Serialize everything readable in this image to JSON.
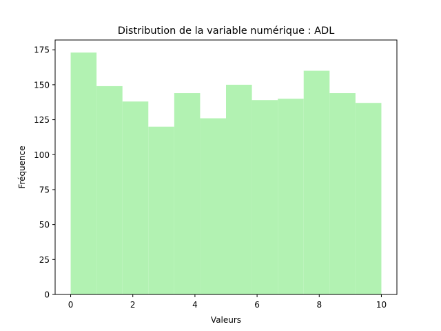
{
  "chart_data": {
    "type": "bar",
    "title": "Distribution de la variable numérique : ADL",
    "xlabel": "Valeurs",
    "ylabel": "Fréquence",
    "bin_edges": [
      0,
      0.8333,
      1.6667,
      2.5,
      3.3333,
      4.1667,
      5,
      5.8333,
      6.6667,
      7.5,
      8.3333,
      9.1667,
      10
    ],
    "values": [
      173,
      149,
      138,
      120,
      144,
      126,
      150,
      139,
      140,
      160,
      144,
      137
    ],
    "xlim": [
      -0.5,
      10.5
    ],
    "ylim": [
      0,
      182
    ],
    "xticks": [
      0,
      2,
      4,
      6,
      8,
      10
    ],
    "yticks": [
      0,
      25,
      50,
      75,
      100,
      125,
      150,
      175
    ],
    "bar_color": "#b2f2b2",
    "grid": false
  }
}
